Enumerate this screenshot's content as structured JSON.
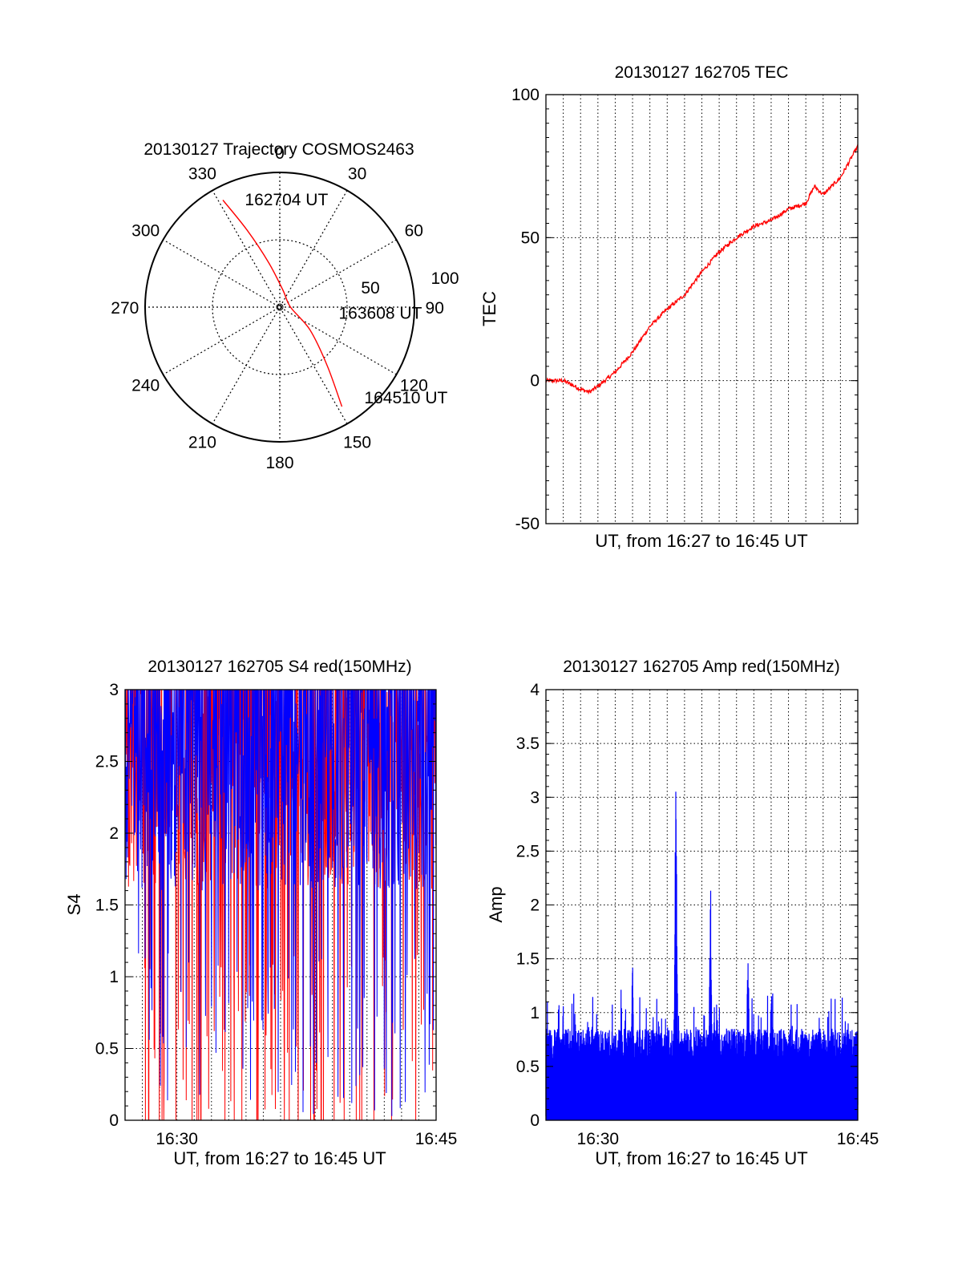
{
  "colors": {
    "primary": "#ff0000",
    "secondary": "#0000ff",
    "axis": "#000000",
    "background": "#ffffff"
  },
  "chart_data": [
    {
      "type": "polar",
      "title": "20130127 Trajectory COSMOS2463",
      "angle_labels": [
        "0",
        "30",
        "60",
        "90",
        "120",
        "150",
        "180",
        "210",
        "240",
        "270",
        "300",
        "330"
      ],
      "radial_labels": [
        "50",
        "100"
      ],
      "grid": true,
      "series": [
        {
          "color": "#ff0000",
          "points": [
            {
              "az": 332,
              "r": 90
            },
            {
              "az": 337,
              "r": 62
            },
            {
              "az": 346,
              "r": 34
            },
            {
              "az": 10,
              "r": 13
            },
            {
              "az": 90,
              "r": 8
            },
            {
              "az": 127,
              "r": 28
            },
            {
              "az": 141,
              "r": 56
            },
            {
              "az": 148,
              "r": 87
            }
          ]
        }
      ],
      "annotations": [
        {
          "text": "162704 UT",
          "az": 342,
          "r": 84
        },
        {
          "text": "163608 UT",
          "az": 96,
          "r": 44
        },
        {
          "text": "164510 UT",
          "az": 137,
          "r": 92
        }
      ]
    },
    {
      "type": "line",
      "title": "20130127 162705 TEC",
      "xlabel": "UT, from 16:27 to 16:45 UT",
      "ylabel": "TEC",
      "xlim": [
        "16:27",
        "16:45"
      ],
      "ylim": [
        -50,
        100
      ],
      "yticks": [
        "100",
        "50",
        "0",
        "-50"
      ],
      "grid": true,
      "series": [
        {
          "color": "#ff0000",
          "x": [
            "16:27:00",
            "16:28:00",
            "16:29:00",
            "16:29:30",
            "16:30:00",
            "16:31:00",
            "16:32:00",
            "16:33:00",
            "16:34:00",
            "16:35:00",
            "16:36:00",
            "16:37:00",
            "16:38:00",
            "16:39:00",
            "16:40:00",
            "16:41:00",
            "16:42:00",
            "16:42:30",
            "16:43:00",
            "16:44:00",
            "16:45:00"
          ],
          "y": [
            0,
            0,
            -3,
            -4,
            -2,
            3,
            10,
            19,
            25,
            30,
            38,
            45,
            50,
            54,
            56,
            60,
            62,
            68,
            65,
            71,
            82
          ]
        }
      ]
    },
    {
      "type": "line",
      "title": "20130127 162705 S4 red(150MHz)",
      "xlabel": "UT, from 16:27 to 16:45 UT",
      "ylabel": "S4",
      "xlim": [
        "16:27",
        "16:45"
      ],
      "ylim": [
        0,
        3
      ],
      "xticks": [
        "16:30",
        "16:45"
      ],
      "yticks": [
        "3",
        "2.5",
        "2",
        "1.5",
        "1",
        "0.5",
        "0"
      ],
      "grid": true,
      "series": [
        {
          "color": "#ff0000",
          "x_range": [
            "16:27",
            "16:45"
          ],
          "y_typical": [
            1.5,
            3
          ]
        },
        {
          "color": "#0000ff",
          "x_range": [
            "16:27",
            "16:45"
          ],
          "y_typical": [
            1.5,
            3
          ]
        }
      ]
    },
    {
      "type": "line",
      "title": "20130127 162705 Amp red(150MHz)",
      "xlabel": "UT, from 16:27 to 16:45 UT",
      "ylabel": "Amp",
      "xlim": [
        "16:27",
        "16:45"
      ],
      "ylim": [
        0,
        4
      ],
      "xticks": [
        "16:30",
        "16:45"
      ],
      "yticks": [
        "4",
        "3.5",
        "3",
        "2.5",
        "2",
        "1.5",
        "1",
        "0.5",
        "0"
      ],
      "grid": true,
      "series": [
        {
          "color": "#0000ff",
          "x_range": [
            "16:27",
            "16:45"
          ],
          "y_typical": [
            0,
            0.9
          ],
          "peaks": [
            {
              "x": "16:34:30",
              "y": 3.5
            },
            {
              "x": "16:36:30",
              "y": 2.3
            },
            {
              "x": "16:38:40",
              "y": 1.8
            },
            {
              "x": "16:32:00",
              "y": 1.6
            },
            {
              "x": "16:40:00",
              "y": 1.2
            }
          ]
        }
      ]
    }
  ]
}
